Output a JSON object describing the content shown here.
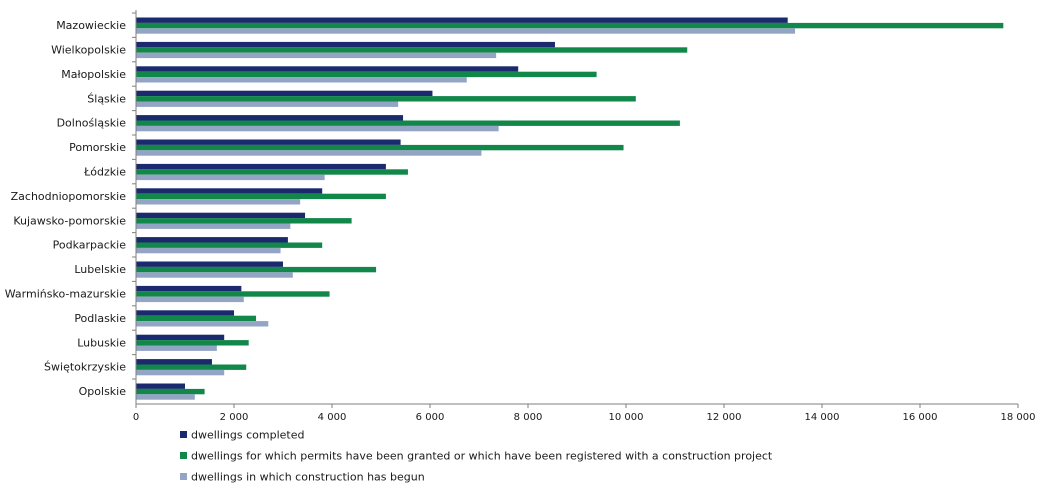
{
  "chart_data": {
    "type": "bar",
    "orientation": "horizontal",
    "categories": [
      "Mazowieckie",
      "Wielkopolskie",
      "Małopolskie",
      "Śląskie",
      "Dolnośląskie",
      "Pomorskie",
      "Łódzkie",
      "Zachodniopomorskie",
      "Kujawsko-pomorskie",
      "Podkarpackie",
      "Lubelskie",
      "Warmińsko-mazurskie",
      "Podlaskie",
      "Lubuskie",
      "Świętokrzyskie",
      "Opolskie"
    ],
    "series": [
      {
        "name": "dwellings completed",
        "color": "#1b2a6e",
        "values": [
          13300,
          8550,
          7800,
          6050,
          5450,
          5400,
          5100,
          3800,
          3450,
          3100,
          3000,
          2150,
          2000,
          1800,
          1550,
          1000
        ]
      },
      {
        "name": "dwellings for which permits have been granted or which have been registered with a construction project",
        "color": "#12874a",
        "values": [
          17700,
          11250,
          9400,
          10200,
          11100,
          9950,
          5550,
          5100,
          4400,
          3800,
          4900,
          3950,
          2450,
          2300,
          2250,
          1400
        ]
      },
      {
        "name": "dwellings in which construction has begun",
        "color": "#93a4c5",
        "values": [
          13450,
          7350,
          6750,
          5350,
          7400,
          7050,
          3850,
          3350,
          3150,
          2950,
          3200,
          2200,
          2700,
          1650,
          1800,
          1200
        ]
      }
    ],
    "xlim": [
      0,
      18000
    ],
    "xticks": [
      0,
      2000,
      4000,
      6000,
      8000,
      10000,
      12000,
      14000,
      16000,
      18000
    ],
    "xtick_labels": [
      "0",
      "2 000",
      "4 000",
      "6 000",
      "8 000",
      "10 000",
      "12 000",
      "14 000",
      "16 000",
      "18 000"
    ],
    "legend_position": "bottom-left",
    "grid": false
  }
}
